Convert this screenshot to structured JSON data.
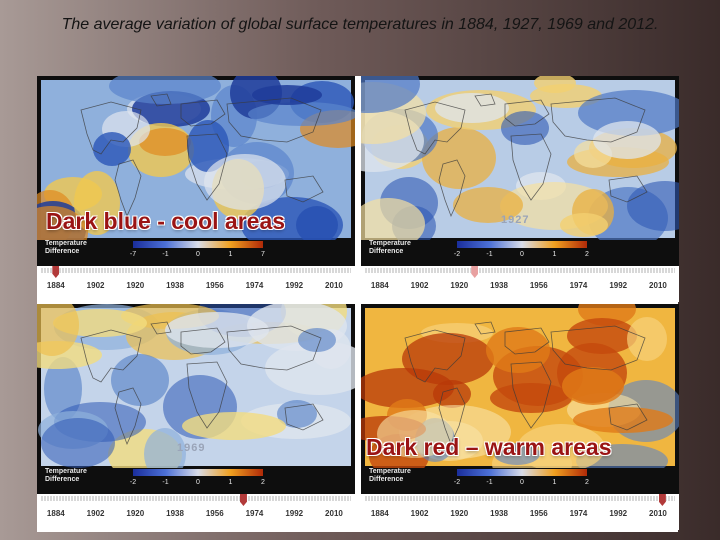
{
  "slide": {
    "title": "The average variation of global surface temperatures in 1884, 1927, 1969 and 2012."
  },
  "legend_label": "Temperature Difference",
  "timeline_years": [
    "1884",
    "1902",
    "1920",
    "1938",
    "1956",
    "1974",
    "1992",
    "2010"
  ],
  "timeline_range": [
    1880,
    2015
  ],
  "colors": {
    "cool": "#1a2e9c",
    "neutral": "#d8dce8",
    "warm": "#b02a08",
    "marker": "#b23a3a",
    "overlay_text": "#9a1414"
  },
  "panels": [
    {
      "id": "p1884",
      "year_label": "",
      "marker_year": 1884,
      "legend_ticks": [
        "-7",
        "-1",
        "0",
        "1",
        "7"
      ],
      "tint": "cold"
    },
    {
      "id": "p1927",
      "year_label": "1927",
      "marker_year": 1927,
      "legend_ticks": [
        "-2",
        "-1",
        "0",
        "1",
        "2"
      ],
      "tint": "mixed"
    },
    {
      "id": "p1969",
      "year_label": "1969",
      "marker_year": 1969,
      "legend_ticks": [
        "-2",
        "-1",
        "0",
        "1",
        "2"
      ],
      "tint": "mild"
    },
    {
      "id": "p2012",
      "year_label": "",
      "marker_year": 2012,
      "legend_ticks": [
        "-2",
        "-1",
        "0",
        "1",
        "2"
      ],
      "tint": "warm"
    }
  ],
  "overlays": {
    "cool_areas": "Dark blue - cool  areas",
    "warm_areas": "Dark red – warm areas"
  }
}
